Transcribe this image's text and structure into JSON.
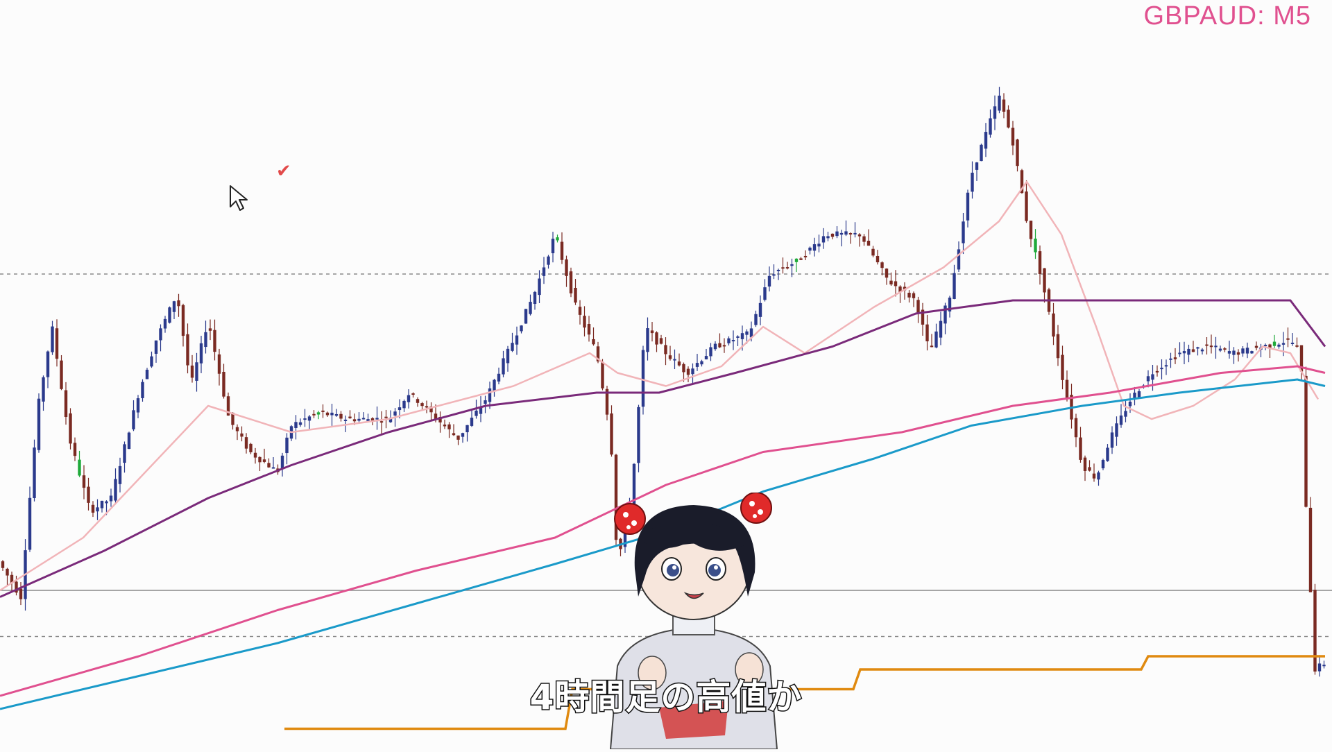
{
  "symbol": "GBPAUD: M5",
  "subtitle": "4時間足の高値か",
  "icons": {
    "cursor": "mouse-pointer-icon",
    "check": "checkmark-icon"
  },
  "colors": {
    "background": "#fcfcfc",
    "bull_candle": "#2b3a8c",
    "bear_candle": "#7a2a22",
    "green_candle": "#1faa3a",
    "ma_fast": "#f1b4b8",
    "ma_mid": "#7a2a7a",
    "ma_slow": "#e0508f",
    "ma_long": "#1a9ac9",
    "level_line": "#e08a10",
    "symbol_text": "#e0508f"
  },
  "chart_data": {
    "type": "candlestick",
    "symbol": "GBPAUD",
    "timeframe": "M5",
    "price_axis_visible": false,
    "horizontal_lines": [
      {
        "style": "dashed",
        "y": 0.7
      },
      {
        "style": "solid",
        "y": 0.22
      },
      {
        "style": "dashed",
        "y": 0.15
      }
    ],
    "ylim": [
      0,
      1
    ],
    "close_path": [
      [
        0,
        0.26
      ],
      [
        30,
        0.21
      ],
      [
        55,
        0.5
      ],
      [
        75,
        0.62
      ],
      [
        100,
        0.45
      ],
      [
        130,
        0.34
      ],
      [
        160,
        0.36
      ],
      [
        200,
        0.52
      ],
      [
        225,
        0.6
      ],
      [
        255,
        0.67
      ],
      [
        275,
        0.53
      ],
      [
        300,
        0.63
      ],
      [
        330,
        0.48
      ],
      [
        360,
        0.43
      ],
      [
        400,
        0.4
      ],
      [
        420,
        0.47
      ],
      [
        460,
        0.49
      ],
      [
        500,
        0.48
      ],
      [
        560,
        0.48
      ],
      [
        590,
        0.52
      ],
      [
        630,
        0.48
      ],
      [
        660,
        0.45
      ],
      [
        700,
        0.51
      ],
      [
        740,
        0.6
      ],
      [
        770,
        0.67
      ],
      [
        800,
        0.76
      ],
      [
        830,
        0.65
      ],
      [
        860,
        0.58
      ],
      [
        880,
        0.46
      ],
      [
        890,
        0.26
      ],
      [
        910,
        0.36
      ],
      [
        930,
        0.62
      ],
      [
        960,
        0.58
      ],
      [
        990,
        0.55
      ],
      [
        1030,
        0.59
      ],
      [
        1080,
        0.61
      ],
      [
        1110,
        0.7
      ],
      [
        1150,
        0.72
      ],
      [
        1190,
        0.76
      ],
      [
        1240,
        0.76
      ],
      [
        1280,
        0.69
      ],
      [
        1320,
        0.66
      ],
      [
        1340,
        0.58
      ],
      [
        1370,
        0.67
      ],
      [
        1400,
        0.85
      ],
      [
        1420,
        0.91
      ],
      [
        1440,
        0.97
      ],
      [
        1460,
        0.9
      ],
      [
        1480,
        0.78
      ],
      [
        1500,
        0.7
      ],
      [
        1530,
        0.55
      ],
      [
        1560,
        0.41
      ],
      [
        1580,
        0.39
      ],
      [
        1600,
        0.45
      ],
      [
        1630,
        0.51
      ],
      [
        1660,
        0.55
      ],
      [
        1700,
        0.58
      ],
      [
        1740,
        0.59
      ],
      [
        1780,
        0.58
      ],
      [
        1820,
        0.59
      ],
      [
        1860,
        0.6
      ],
      [
        1875,
        0.58
      ],
      [
        1882,
        0.36
      ],
      [
        1895,
        0.1
      ],
      [
        1910,
        0.11
      ]
    ],
    "moving_averages": [
      {
        "points": [
          [
            0,
            0.22
          ],
          [
            120,
            0.3
          ],
          [
            300,
            0.5
          ],
          [
            420,
            0.46
          ],
          [
            560,
            0.48
          ],
          [
            740,
            0.53
          ],
          [
            850,
            0.58
          ],
          [
            890,
            0.55
          ],
          [
            960,
            0.53
          ],
          [
            1040,
            0.56
          ],
          [
            1100,
            0.62
          ],
          [
            1160,
            0.58
          ],
          [
            1260,
            0.65
          ],
          [
            1360,
            0.71
          ],
          [
            1440,
            0.78
          ],
          [
            1480,
            0.84
          ],
          [
            1530,
            0.76
          ],
          [
            1580,
            0.62
          ],
          [
            1620,
            0.5
          ],
          [
            1660,
            0.48
          ],
          [
            1720,
            0.5
          ],
          [
            1780,
            0.54
          ],
          [
            1820,
            0.59
          ],
          [
            1860,
            0.58
          ],
          [
            1900,
            0.51
          ]
        ]
      },
      {
        "points": [
          [
            0,
            0.21
          ],
          [
            150,
            0.28
          ],
          [
            300,
            0.36
          ],
          [
            420,
            0.41
          ],
          [
            560,
            0.46
          ],
          [
            700,
            0.5
          ],
          [
            860,
            0.52
          ],
          [
            950,
            0.52
          ],
          [
            1060,
            0.55
          ],
          [
            1200,
            0.59
          ],
          [
            1320,
            0.64
          ],
          [
            1460,
            0.66
          ],
          [
            1560,
            0.66
          ],
          [
            1700,
            0.66
          ],
          [
            1860,
            0.66
          ],
          [
            1910,
            0.59
          ]
        ]
      },
      {
        "points": [
          [
            0,
            0.06
          ],
          [
            200,
            0.12
          ],
          [
            400,
            0.19
          ],
          [
            600,
            0.25
          ],
          [
            800,
            0.3
          ],
          [
            960,
            0.38
          ],
          [
            1100,
            0.43
          ],
          [
            1300,
            0.46
          ],
          [
            1460,
            0.5
          ],
          [
            1600,
            0.52
          ],
          [
            1760,
            0.55
          ],
          [
            1870,
            0.56
          ],
          [
            1910,
            0.55
          ]
        ]
      },
      {
        "points": [
          [
            0,
            0.04
          ],
          [
            200,
            0.09
          ],
          [
            400,
            0.14
          ],
          [
            600,
            0.2
          ],
          [
            800,
            0.26
          ],
          [
            960,
            0.31
          ],
          [
            1100,
            0.37
          ],
          [
            1260,
            0.42
          ],
          [
            1400,
            0.47
          ],
          [
            1560,
            0.5
          ],
          [
            1700,
            0.52
          ],
          [
            1870,
            0.54
          ],
          [
            1910,
            0.53
          ]
        ]
      }
    ],
    "level_steps": [
      {
        "x_from": 410,
        "x_to": 825,
        "y": 0.01
      },
      {
        "x_from": 825,
        "x_to": 1240,
        "y": 0.07
      },
      {
        "x_from": 1240,
        "x_to": 1655,
        "y": 0.1
      },
      {
        "x_from": 1655,
        "x_to": 1920,
        "y": 0.12
      }
    ]
  }
}
